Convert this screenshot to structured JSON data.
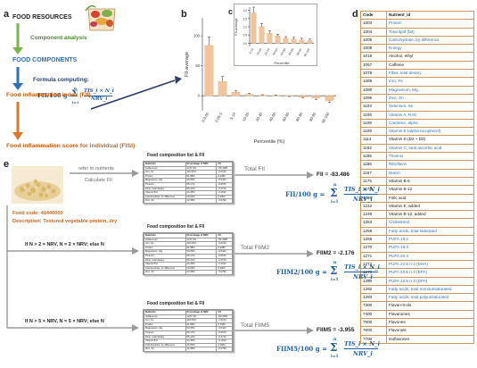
{
  "panels": {
    "a": "a",
    "b": "b",
    "c": "c",
    "d": "d",
    "e": "e"
  },
  "flow": {
    "food_resources": "FOOD RESOURCES",
    "component_analysis": "Component analysis",
    "food_components": "FOOD COMPONENTS",
    "formula_computing": "Formula computing:",
    "fii": "Food inflammation index (FII)",
    "fisi": "Food inflammation score for individual (FISI)",
    "formula_fii": "FII/100 g = Σ TIS_i × N_i / NRV_i",
    "formula_lhs": "FII/100 g =",
    "formula_num": "TIS_i × N_i",
    "formula_den": "NRV_i",
    "formula_sum_top": "n",
    "formula_sum_bot": "i=1"
  },
  "chart_data": [
    {
      "type": "bar",
      "xlabel": "Percentile (%)",
      "ylabel": "FII-average",
      "categories": [
        "0-0.05",
        "0.05-5",
        "5-10",
        "10-20",
        "20-40",
        "40-60",
        "60-80",
        "80-90",
        "90-95",
        "95-100"
      ],
      "values": [
        84,
        24,
        6,
        2.5,
        1,
        0.5,
        -0.5,
        -2,
        -4,
        -8
      ],
      "error": [
        14,
        8,
        3,
        1.5,
        0.8,
        0.6,
        0.8,
        1.2,
        2,
        3
      ],
      "ylim": [
        -25,
        130
      ],
      "yticks": [
        "0",
        "50",
        "100"
      ],
      "color": "#f3c49a"
    },
    {
      "type": "bar",
      "xlabel": "Percentile",
      "ylabel": "FII-average",
      "categories": [
        "5-10",
        "10-20",
        "20-40",
        "40-60",
        "60-80",
        "80-90",
        "90-95",
        "95-100"
      ],
      "values": [
        1.85,
        1.0,
        0.6,
        0.45,
        0.3,
        0.25,
        0.2,
        0.15
      ],
      "error": [
        0.35,
        0.2,
        0.15,
        0.1,
        0.1,
        0.1,
        0.1,
        0.1
      ],
      "ylim": [
        -0.2,
        2.2
      ],
      "yticks": [
        "2.0",
        "1.5",
        "1.0",
        "0.5",
        "0.0"
      ],
      "color": "#f3c49a"
    }
  ],
  "nutrients": {
    "headers": [
      "Code",
      "Nutrient_id"
    ],
    "rows": [
      {
        "code": "1003",
        "name": "Protein",
        "blue": true
      },
      {
        "code": "1004",
        "name": "Total lipid (fat)",
        "blue": true
      },
      {
        "code": "1005",
        "name": "Carbohydrate, by difference",
        "blue": true
      },
      {
        "code": "1008",
        "name": "Energy",
        "blue": true
      },
      {
        "code": "1018",
        "name": "Alcohol, ethyl",
        "blue": false
      },
      {
        "code": "1057",
        "name": "Caffeine",
        "blue": false
      },
      {
        "code": "1079",
        "name": "Fiber, total dietary",
        "blue": true
      },
      {
        "code": "1089",
        "name": "Iron, Fe",
        "blue": true
      },
      {
        "code": "1090",
        "name": "Magnesium, Mg",
        "blue": true
      },
      {
        "code": "1095",
        "name": "Zinc, Zn",
        "blue": true
      },
      {
        "code": "1103",
        "name": "Selenium, Se",
        "blue": true
      },
      {
        "code": "1106",
        "name": "Vitamin A, RAE",
        "blue": true
      },
      {
        "code": "1108",
        "name": "Carotene, alpha",
        "blue": true
      },
      {
        "code": "1109",
        "name": "Vitamin E (alpha-tocopherol)",
        "blue": true
      },
      {
        "code": "1114",
        "name": "Vitamin D (D2 + D3)",
        "blue": false
      },
      {
        "code": "1162",
        "name": "Vitamin C, total ascorbic acid",
        "blue": true
      },
      {
        "code": "1165",
        "name": "Thiamin",
        "blue": true
      },
      {
        "code": "1166",
        "name": "Riboflavin",
        "blue": true
      },
      {
        "code": "1167",
        "name": "Niacin",
        "blue": true
      },
      {
        "code": "1175",
        "name": "Vitamin B-6",
        "blue": false
      },
      {
        "code": "1178",
        "name": "Vitamin B-12",
        "blue": false
      },
      {
        "code": "1186",
        "name": "Folic acid",
        "blue": false
      },
      {
        "code": "1242",
        "name": "Vitamin E, added",
        "blue": false
      },
      {
        "code": "1246",
        "name": "Vitamin B-12, added",
        "blue": false
      },
      {
        "code": "1253",
        "name": "Cholesterol",
        "blue": true
      },
      {
        "code": "1258",
        "name": "Fatty acids, total saturated",
        "blue": true
      },
      {
        "code": "1269",
        "name": "PUFA 18:2",
        "blue": true
      },
      {
        "code": "1270",
        "name": "PUFA 18:3",
        "blue": true
      },
      {
        "code": "1271",
        "name": "PUFA 20:4",
        "blue": true
      },
      {
        "code": "1272",
        "name": "PUFA 22:6 n-3 (DHA)",
        "blue": true
      },
      {
        "code": "1278",
        "name": "PUFA 20:5 n-3 (EPA)",
        "blue": true
      },
      {
        "code": "1280",
        "name": "PUFA 22:5 n-3 (DPA)",
        "blue": true
      },
      {
        "code": "1292",
        "name": "Fatty acids, total monounsaturated",
        "blue": true
      },
      {
        "code": "1293",
        "name": "Fatty acids, total polyunsaturated",
        "blue": true
      },
      {
        "code": "7300",
        "name": "Flavan-3-ols",
        "blue": false
      },
      {
        "code": "7400",
        "name": "Flavanones",
        "blue": false
      },
      {
        "code": "7500",
        "name": "Flavones",
        "blue": false
      },
      {
        "code": "7600",
        "name": "Flavonols",
        "blue": false
      },
      {
        "code": "7700",
        "name": "Isoflavones",
        "blue": false
      }
    ]
  },
  "panel_e": {
    "food_code": "Food code: 41440000",
    "description": "Description: Textured vegetable protein, dry",
    "refer": "refer to nutrients",
    "calculate": "Calculate FII",
    "card_title": "Food composition list & FII",
    "rule_fiim2": "If N > 2 × NRV, N = 2 × NRV; else N",
    "rule_fiim5": "If N > 5 × NRV, N = 5 × NRV; else N",
    "total_fii": "Total FII",
    "total_fiim2": "Total FIIM2",
    "total_fiim5": "Total FIIM5",
    "fii_value": "FII = -83.486",
    "fiim2_value": "FIIM2 = -2.176",
    "fiim5_value": "FIIM5 = -3.955",
    "formula1_lhs": "FII/100 g =",
    "formula2_lhs": "FIIM2/100 g =",
    "formula3_lhs": "FIIM5/100 g =",
    "mini_header": [
      "Nutrients",
      "Percentage of NRV",
      "FII"
    ],
    "mini_rows": [
      [
        "Isoflavones",
        "1247.3%",
        "-83.4382"
      ],
      [
        "Iron, Fe",
        "119.33%",
        "-0.0194"
      ],
      [
        "Protein",
        "91.88%",
        "0.0180"
      ],
      [
        "Magnesium, Mg",
        "90.65%",
        "-0.0442"
      ],
      [
        "Thiamin",
        "66.17%",
        "-0.0676"
      ],
      [
        "Fiber, total dietary",
        "56.14%",
        "-0.3743"
      ],
      [
        "Vitamin B-6",
        "44.45%",
        "-0.1612"
      ],
      [
        "Carbohydrate, by difference",
        "26.09%",
        "0.0203"
      ],
      [
        "Zinc, Zn",
        "22.38%",
        "-0.0790"
      ]
    ]
  }
}
